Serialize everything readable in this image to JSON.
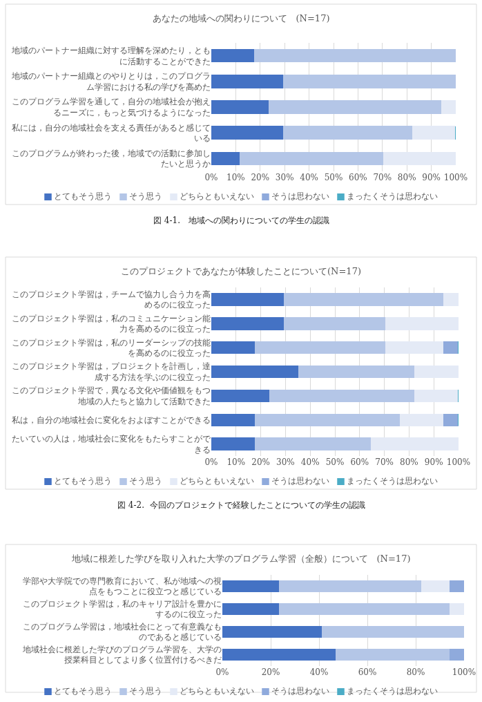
{
  "chart_data": [
    {
      "type": "bar",
      "orientation": "horizontal",
      "stacked": true,
      "title": "あなたの地域への関わりについて　(N=17)",
      "categories": [
        "地域のパートナー組織に対する理解を深めたり，ともに活動することができた",
        "地域のパートナー組織とのやりとりは，このプログラム学習における私の学びを高めた",
        "このプログラム学習を通して，自分の地域社会が抱えるニーズに，もっと気づけるようになった",
        "私には，自分の地域社会を支える責任があると感じている",
        "このプログラムが終わった後，地域での活動に参加したいと思うか"
      ],
      "series": [
        {
          "name": "とてもそう思う",
          "color": "#4472c4",
          "values": [
            17.6,
            29.4,
            23.5,
            29.4,
            11.8
          ]
        },
        {
          "name": "そう思う",
          "color": "#b4c6e7",
          "values": [
            82.4,
            70.6,
            70.6,
            52.9,
            58.8
          ]
        },
        {
          "name": "どちらともいえない",
          "color": "#e4eaf6",
          "values": [
            0,
            0,
            5.9,
            17.6,
            29.4
          ]
        },
        {
          "name": "そうは思わない",
          "color": "#8faadc",
          "values": [
            0,
            0,
            0,
            0,
            0
          ]
        },
        {
          "name": "まったくそうは思わない",
          "color": "#4bacc6",
          "values": [
            0,
            0,
            0,
            0,
            0
          ]
        }
      ],
      "xlim": [
        0,
        100
      ],
      "xticks": [
        {
          "value": 0,
          "label": "0%"
        },
        {
          "value": 10,
          "label": "10%"
        },
        {
          "value": 20,
          "label": "20%"
        },
        {
          "value": 30,
          "label": "30%"
        },
        {
          "value": 40,
          "label": "40%"
        },
        {
          "value": 50,
          "label": "50%"
        },
        {
          "value": 60,
          "label": "60%"
        },
        {
          "value": 70,
          "label": "70%"
        },
        {
          "value": 80,
          "label": "80%"
        },
        {
          "value": 90,
          "label": "90%"
        },
        {
          "value": 100,
          "label": "100%"
        }
      ],
      "grid": "x",
      "legend": "bottom",
      "annotations": [
        "図 4-1.　地域への関わりについての学生の認識"
      ]
    },
    {
      "type": "bar",
      "orientation": "horizontal",
      "stacked": true,
      "title": "このプロジェクトであなたが体験したことについて(N=17)",
      "categories": [
        "このプロジェクト学習は，チームで協力し合う力を高めるのに役立った",
        "このプロジェクト学習は，私のコミュニケーション能力を高めるのに役立った",
        "このプロジェクト学習は，私のリーダーシップの技能を高めるのに役立った",
        "このプロジェクト学習は，プロジェクトを計画し，達成する方法を学ぶのに役立った",
        "このプロジェクト学習で，異なる文化や価値観をもつ地域の人たちと協力して活動できた",
        "私は，自分の地域社会に変化をおよぼすことができる",
        "たいていの人は，地域社会に変化をもたらすことができる"
      ],
      "series": [
        {
          "name": "とてもそう思う",
          "color": "#4472c4",
          "values": [
            29.4,
            29.4,
            17.6,
            35.3,
            23.5,
            17.6,
            17.6
          ]
        },
        {
          "name": "そう思う",
          "color": "#b4c6e7",
          "values": [
            64.7,
            41.2,
            52.9,
            47.1,
            58.8,
            58.8,
            47.1
          ]
        },
        {
          "name": "どちらともいえない",
          "color": "#e4eaf6",
          "values": [
            5.9,
            29.4,
            23.5,
            17.6,
            17.6,
            17.6,
            35.3
          ]
        },
        {
          "name": "そうは思わない",
          "color": "#8faadc",
          "values": [
            0,
            0,
            5.9,
            0,
            0,
            5.9,
            0
          ]
        },
        {
          "name": "まったくそうは思わない",
          "color": "#4bacc6",
          "values": [
            0,
            0,
            0,
            0,
            0,
            0,
            0
          ]
        }
      ],
      "xlim": [
        0,
        100
      ],
      "xticks": [
        {
          "value": 0,
          "label": "0%"
        },
        {
          "value": 10,
          "label": "10%"
        },
        {
          "value": 20,
          "label": "20%"
        },
        {
          "value": 30,
          "label": "30%"
        },
        {
          "value": 40,
          "label": "40%"
        },
        {
          "value": 50,
          "label": "50%"
        },
        {
          "value": 60,
          "label": "60%"
        },
        {
          "value": 70,
          "label": "70%"
        },
        {
          "value": 80,
          "label": "80%"
        },
        {
          "value": 90,
          "label": "90%"
        },
        {
          "value": 100,
          "label": "100%"
        }
      ],
      "grid": "x",
      "legend": "bottom",
      "annotations": [
        "図 4-2.  今回のプロジェクトで経験したことについての学生の認識"
      ]
    },
    {
      "type": "bar",
      "orientation": "horizontal",
      "stacked": true,
      "title": "地域に根差した学びを取り入れた大学のプログラム学習（全般）について　(N=17)",
      "categories": [
        "学部や大学院での専門教育において、私が地域への視点をもつことに役立つと感じている",
        "このプロジェクト学習は，私のキャリア設計を豊かにするのに役立った",
        "このプログラム学習は，地域社会にとって有意義なものであると感じている",
        "地域社会に根差した学びのプログラム学習を、大学の授業科目としてより多く位置付けるべきだ"
      ],
      "series": [
        {
          "name": "とてもそう思う",
          "color": "#4472c4",
          "values": [
            23.5,
            23.5,
            41.2,
            47.1
          ]
        },
        {
          "name": "そう思う",
          "color": "#b4c6e7",
          "values": [
            58.8,
            70.6,
            58.8,
            47.1
          ]
        },
        {
          "name": "どちらともいえない",
          "color": "#e4eaf6",
          "values": [
            11.8,
            5.9,
            0,
            0
          ]
        },
        {
          "name": "そうは思わない",
          "color": "#8faadc",
          "values": [
            5.9,
            0,
            0,
            5.9
          ]
        },
        {
          "name": "まったくそうは思わない",
          "color": "#4bacc6",
          "values": [
            0,
            0,
            0,
            0
          ]
        }
      ],
      "xlim": [
        0,
        100
      ],
      "xticks": [
        {
          "value": 0,
          "label": "0%"
        },
        {
          "value": 20,
          "label": "20%"
        },
        {
          "value": 40,
          "label": "40%"
        },
        {
          "value": 60,
          "label": "60%"
        },
        {
          "value": 80,
          "label": "80%"
        },
        {
          "value": 100,
          "label": "100%"
        }
      ],
      "grid": "x",
      "legend": "bottom"
    }
  ]
}
